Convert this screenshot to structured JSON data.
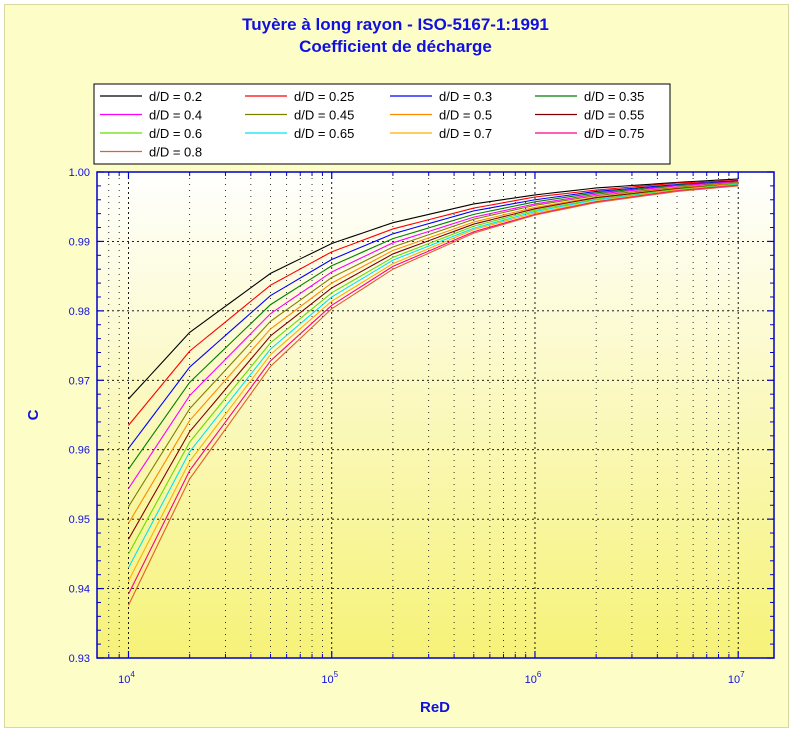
{
  "chart_data": {
    "type": "line",
    "title": "Tuyère à long rayon - ISO-5167-1:1991",
    "subtitle": "Coefficient de décharge",
    "xlabel": "ReD",
    "ylabel": "C",
    "x_scale": "log",
    "xlim": [
      7000,
      15000000
    ],
    "ylim": [
      0.93,
      1.0
    ],
    "x_ticks": [
      10000,
      100000,
      1000000,
      10000000
    ],
    "y_ticks": [
      0.93,
      0.94,
      0.95,
      0.96,
      0.97,
      0.98,
      0.99,
      1.0
    ],
    "y_tick_labels": [
      "0.93",
      "0.94",
      "0.95",
      "0.96",
      "0.97",
      "0.98",
      "0.99",
      "1.00"
    ],
    "grid": true,
    "legend_position": "top",
    "x": [
      10000,
      20000,
      50000,
      100000,
      200000,
      500000,
      1000000,
      2000000,
      5000000,
      10000000
    ],
    "series": [
      {
        "name": "d/D = 0.2",
        "color": "#000000",
        "values": [
          0.9673,
          0.9769,
          0.9854,
          0.9897,
          0.9927,
          0.9954,
          0.9967,
          0.9977,
          0.9985,
          0.999
        ]
      },
      {
        "name": "d/D = 0.25",
        "color": "#ff0000",
        "values": [
          0.9635,
          0.9742,
          0.9837,
          0.9885,
          0.9918,
          0.9948,
          0.9964,
          0.9974,
          0.9984,
          0.9988
        ]
      },
      {
        "name": "d/D = 0.3",
        "color": "#0000ff",
        "values": [
          0.9602,
          0.9719,
          0.9822,
          0.9874,
          0.9911,
          0.9944,
          0.996,
          0.9972,
          0.9982,
          0.9987
        ]
      },
      {
        "name": "d/D = 0.35",
        "color": "#008000",
        "values": [
          0.9572,
          0.9697,
          0.9809,
          0.9865,
          0.9904,
          0.9939,
          0.9957,
          0.997,
          0.9981,
          0.9986
        ]
      },
      {
        "name": "d/D = 0.4",
        "color": "#ff00ff",
        "values": [
          0.9544,
          0.9678,
          0.9796,
          0.9856,
          0.9898,
          0.9935,
          0.9954,
          0.9968,
          0.998,
          0.9986
        ]
      },
      {
        "name": "d/D = 0.45",
        "color": "#808000",
        "values": [
          0.9518,
          0.9659,
          0.9785,
          0.9848,
          0.9892,
          0.9932,
          0.9952,
          0.9966,
          0.9978,
          0.9985
        ]
      },
      {
        "name": "d/D = 0.5",
        "color": "#ff8c00",
        "values": [
          0.9494,
          0.9642,
          0.9774,
          0.984,
          0.9887,
          0.9928,
          0.9949,
          0.9964,
          0.9977,
          0.9984
        ]
      },
      {
        "name": "d/D = 0.55",
        "color": "#800000",
        "values": [
          0.9471,
          0.9626,
          0.9764,
          0.9833,
          0.9882,
          0.9925,
          0.9947,
          0.9963,
          0.9976,
          0.9983
        ]
      },
      {
        "name": "d/D = 0.6",
        "color": "#66dd00",
        "values": [
          0.945,
          0.9611,
          0.9754,
          0.9826,
          0.9877,
          0.9922,
          0.9945,
          0.9961,
          0.9975,
          0.9983
        ]
      },
      {
        "name": "d/D = 0.65",
        "color": "#00e5ee",
        "values": [
          0.943,
          0.9597,
          0.9745,
          0.982,
          0.9873,
          0.9919,
          0.9943,
          0.996,
          0.9974,
          0.9982
        ]
      },
      {
        "name": "d/D = 0.7",
        "color": "#ffb000",
        "values": [
          0.9411,
          0.9583,
          0.9737,
          0.9814,
          0.9868,
          0.9917,
          0.9941,
          0.9958,
          0.9974,
          0.9981
        ]
      },
      {
        "name": "d/D = 0.75",
        "color": "#ff0088",
        "values": [
          0.9392,
          0.957,
          0.9728,
          0.9808,
          0.9864,
          0.9914,
          0.9939,
          0.9957,
          0.9973,
          0.9981
        ]
      },
      {
        "name": "d/D = 0.8",
        "color": "#e06030",
        "values": [
          0.9376,
          0.9558,
          0.972,
          0.9803,
          0.986,
          0.9912,
          0.9938,
          0.9956,
          0.9972,
          0.998
        ]
      }
    ],
    "colors": {
      "frame_background": "#fdfdc8",
      "plot_gradient_top": "#ffffff",
      "plot_gradient_bottom": "#f6f278",
      "axis": "#0000c8",
      "grid": "#000000",
      "text": "#1010e0"
    }
  }
}
